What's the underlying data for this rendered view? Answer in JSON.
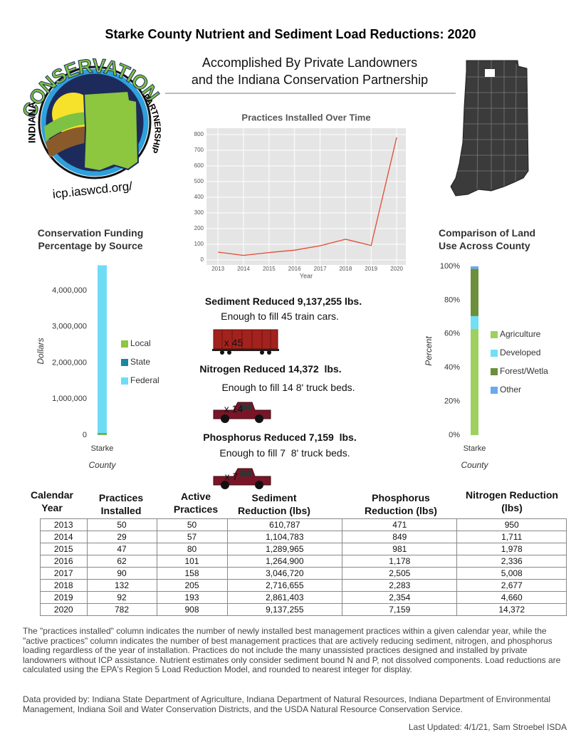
{
  "header": {
    "title": "Starke County Nutrient and Sediment Load Reductions: 2020",
    "subtitle": [
      "Accomplished By Private Landowners",
      "and the Indiana Conservation Partnership"
    ]
  },
  "logo": {
    "left": "INDIANA",
    "arc": "CONSERVATION",
    "right": "PARTNERSHIP",
    "url": "icp.iaswcd.org/"
  },
  "chart_data": [
    {
      "type": "line",
      "title": "Practices Installed Over Time",
      "xlabel": "Year",
      "x": [
        2013,
        2014,
        2015,
        2016,
        2017,
        2018,
        2019,
        2020
      ],
      "values": [
        50,
        29,
        47,
        62,
        90,
        132,
        92,
        782
      ],
      "color": "#e24a33",
      "xlim": [
        2012.55,
        2020.36
      ],
      "xticks": [
        2013,
        2014,
        2015,
        2016,
        2017,
        2018,
        2019,
        2020
      ],
      "ylim": [
        -32,
        841
      ],
      "yticks": [
        0,
        100,
        200,
        300,
        400,
        500,
        600,
        700,
        800
      ],
      "grid": true
    },
    {
      "type": "bar",
      "stacked": true,
      "title": "Conservation Funding Percentage by Source",
      "xlabel": "County",
      "ylabel": "Dollars",
      "categories": [
        "Starke"
      ],
      "series": [
        {
          "name": "Local",
          "color": "#8dc63f",
          "values": [
            30000
          ]
        },
        {
          "name": "State",
          "color": "#1a86a3",
          "values": [
            20000
          ]
        },
        {
          "name": "Federal",
          "color": "#6fdcf6",
          "values": [
            4650000
          ]
        }
      ],
      "ylim": [
        0,
        4710000
      ],
      "yticks": [
        0,
        {
          "value": 1000000,
          "label": "1,000,000"
        },
        {
          "value": 2000000,
          "label": "2,000,000"
        },
        {
          "value": 3000000,
          "label": "3,000,000"
        },
        {
          "value": 4000000,
          "label": "4,000,000"
        }
      ],
      "grid": false
    },
    {
      "type": "bar",
      "stacked": true,
      "title": "Comparison of Land Use Across County",
      "xlabel": "County",
      "ylabel": "Percent",
      "categories": [
        "Starke"
      ],
      "series": [
        {
          "name": "Agriculture",
          "color": "#9dd05e",
          "values": [
            63
          ]
        },
        {
          "name": "Developed",
          "color": "#6fe0f7",
          "values": [
            7.5
          ]
        },
        {
          "name": "Forest/Wetla",
          "color": "#6b8f3b",
          "values": [
            28
          ]
        },
        {
          "name": "Other",
          "color": "#6aa9f0",
          "values": [
            1.5
          ]
        }
      ],
      "ylim": [
        0,
        100
      ],
      "yticks": [
        {
          "value": 0,
          "label": "0%"
        },
        {
          "value": 20,
          "label": "20%"
        },
        {
          "value": 40,
          "label": "40%"
        },
        {
          "value": 60,
          "label": "60%"
        },
        {
          "value": 80,
          "label": "80%"
        },
        {
          "value": 100,
          "label": "100%"
        }
      ],
      "grid": false
    }
  ],
  "stats": [
    {
      "headline": "Sediment Reduced 9,137,255 lbs.",
      "detail": "Enough to fill 45 train cars.",
      "count": "x 45"
    },
    {
      "headline": "Nitrogen Reduced 14,372  lbs.",
      "detail": "Enough to fill 14 8' truck beds.",
      "count": "x 14"
    },
    {
      "headline": "Phosphorus Reduced 7,159  lbs.",
      "detail": "Enough to fill 7  8' truck beds.",
      "count": "x 7"
    }
  ],
  "table": {
    "headers": [
      "Calendar Year",
      "Practices Installed",
      "Active Practices",
      "Sediment Reduction (lbs)",
      "Phosphorus Reduction (lbs)",
      "Nitrogen Reduction (lbs)"
    ],
    "rows": [
      [
        "2013",
        "50",
        "50",
        "610,787",
        "471",
        "950"
      ],
      [
        "2014",
        "29",
        "57",
        "1,104,783",
        "849",
        "1,711"
      ],
      [
        "2015",
        "47",
        "80",
        "1,289,965",
        "981",
        "1,978"
      ],
      [
        "2016",
        "62",
        "101",
        "1,264,900",
        "1,178",
        "2,336"
      ],
      [
        "2017",
        "90",
        "158",
        "3,046,720",
        "2,505",
        "5,008"
      ],
      [
        "2018",
        "132",
        "205",
        "2,716,655",
        "2,283",
        "2,677"
      ],
      [
        "2019",
        "92",
        "193",
        "2,861,403",
        "2,354",
        "4,660"
      ],
      [
        "2020",
        "782",
        "908",
        "9,137,255",
        "7,159",
        "14,372"
      ]
    ]
  },
  "footer": {
    "note": "The \"practices installed\" column indicates the number of newly installed best management practices within a given calendar year, while the \"active practices\" column indicates the number of best management practices that are actively reducing sediment, nitrogen, and phosphorus loading regardless of the year of installation.  Practices do not include the many unassisted practices designed and installed by private landowners without ICP assistance. Nutrient estimates only consider sediment bound N and P, not dissolved components. Load reductions are calculated using the EPA's Region 5 Load Reduction Model, and rounded to nearest integer for display.",
    "sources": "Data provided by: Indiana State Department of Agriculture, Indiana Department of Natural Resources, Indiana Department of Environmental Management, Indiana Soil and Water Conservation Districts, and the USDA Natural Resource Conservation Service.",
    "updated": "Last Updated: 4/1/21, Sam Stroebel ISDA"
  }
}
